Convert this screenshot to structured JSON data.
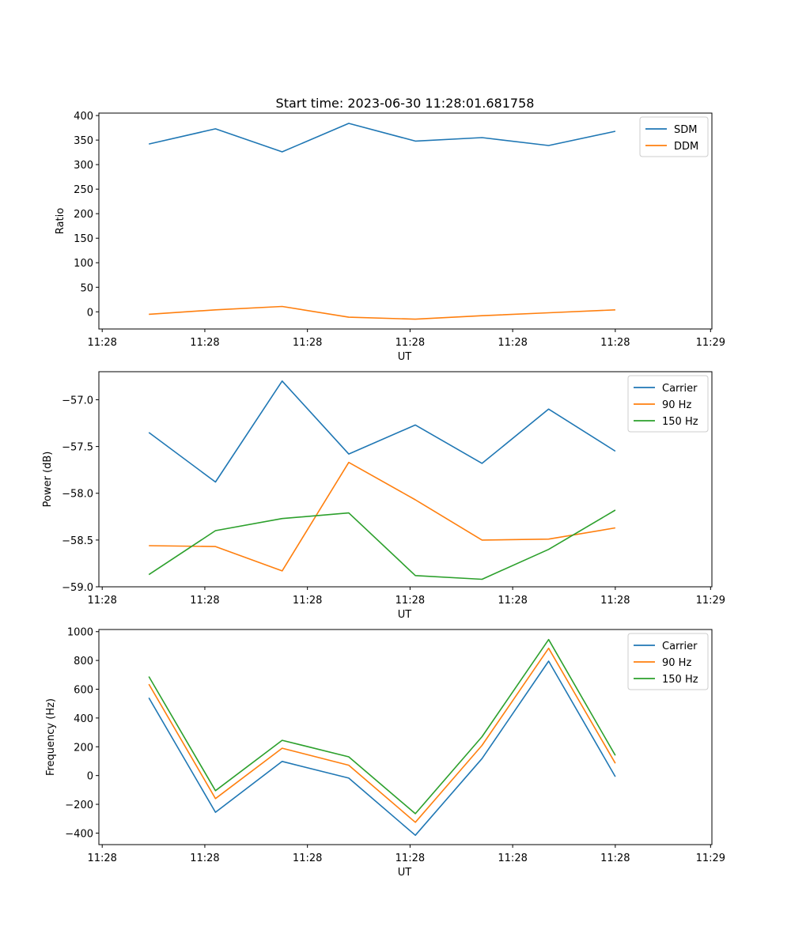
{
  "title": "Start time: 2023-06-30 11:28:01.681758",
  "x_tick_labels": [
    "11:28",
    "11:28",
    "11:28",
    "11:28",
    "11:28",
    "11:28",
    "11:29"
  ],
  "chart_data": [
    {
      "type": "line",
      "xlabel": "UT",
      "ylabel": "Ratio",
      "ylim": [
        -35,
        405
      ],
      "yticks": [
        0,
        50,
        100,
        150,
        200,
        250,
        300,
        350,
        400
      ],
      "legend_position": "top-right",
      "x": [
        1,
        2,
        3,
        4,
        5,
        6,
        7,
        8
      ],
      "series": [
        {
          "name": "SDM",
          "color": "#1f77b4",
          "values": [
            342,
            373,
            326,
            384,
            348,
            355,
            339,
            368
          ]
        },
        {
          "name": "DDM",
          "color": "#ff7f0e",
          "values": [
            -5,
            4,
            11,
            -11,
            -15,
            -8,
            -2,
            4
          ]
        }
      ]
    },
    {
      "type": "line",
      "xlabel": "UT",
      "ylabel": "Power (dB)",
      "ylim": [
        -59.0,
        -56.7
      ],
      "yticks": [
        -59.0,
        -58.5,
        -58.0,
        -57.5,
        -57.0
      ],
      "yticks_text": [
        "−59.0",
        "−58.5",
        "−58.0",
        "−57.5",
        "−57.0"
      ],
      "legend_position": "top-right",
      "x": [
        1,
        2,
        3,
        4,
        5,
        6,
        7,
        8
      ],
      "series": [
        {
          "name": "Carrier",
          "color": "#1f77b4",
          "values": [
            -57.35,
            -57.88,
            -56.8,
            -57.58,
            -57.27,
            -57.68,
            -57.1,
            -57.55
          ]
        },
        {
          "name": "90 Hz",
          "color": "#ff7f0e",
          "values": [
            -58.56,
            -58.57,
            -58.83,
            -57.67,
            -58.07,
            -58.5,
            -58.49,
            -58.37
          ]
        },
        {
          "name": "150 Hz",
          "color": "#2ca02c",
          "values": [
            -58.87,
            -58.4,
            -58.27,
            -58.21,
            -58.88,
            -58.92,
            -58.6,
            -58.18
          ]
        }
      ]
    },
    {
      "type": "line",
      "xlabel": "UT",
      "ylabel": "Frequency (Hz)",
      "ylim": [
        -480,
        1015
      ],
      "yticks": [
        -400,
        -200,
        0,
        200,
        400,
        600,
        800,
        1000
      ],
      "yticks_text": [
        "−400",
        "−200",
        "0",
        "200",
        "400",
        "600",
        "800",
        "1000"
      ],
      "legend_position": "top-right",
      "x": [
        1,
        2,
        3,
        4,
        5,
        6,
        7,
        8
      ],
      "series": [
        {
          "name": "Carrier",
          "color": "#1f77b4",
          "values": [
            540,
            -255,
            98,
            -18,
            -415,
            118,
            795,
            -8
          ]
        },
        {
          "name": "90 Hz",
          "color": "#ff7f0e",
          "values": [
            635,
            -160,
            190,
            72,
            -325,
            210,
            885,
            85
          ]
        },
        {
          "name": "150 Hz",
          "color": "#2ca02c",
          "values": [
            688,
            -105,
            245,
            130,
            -265,
            270,
            945,
            140
          ]
        }
      ]
    }
  ]
}
